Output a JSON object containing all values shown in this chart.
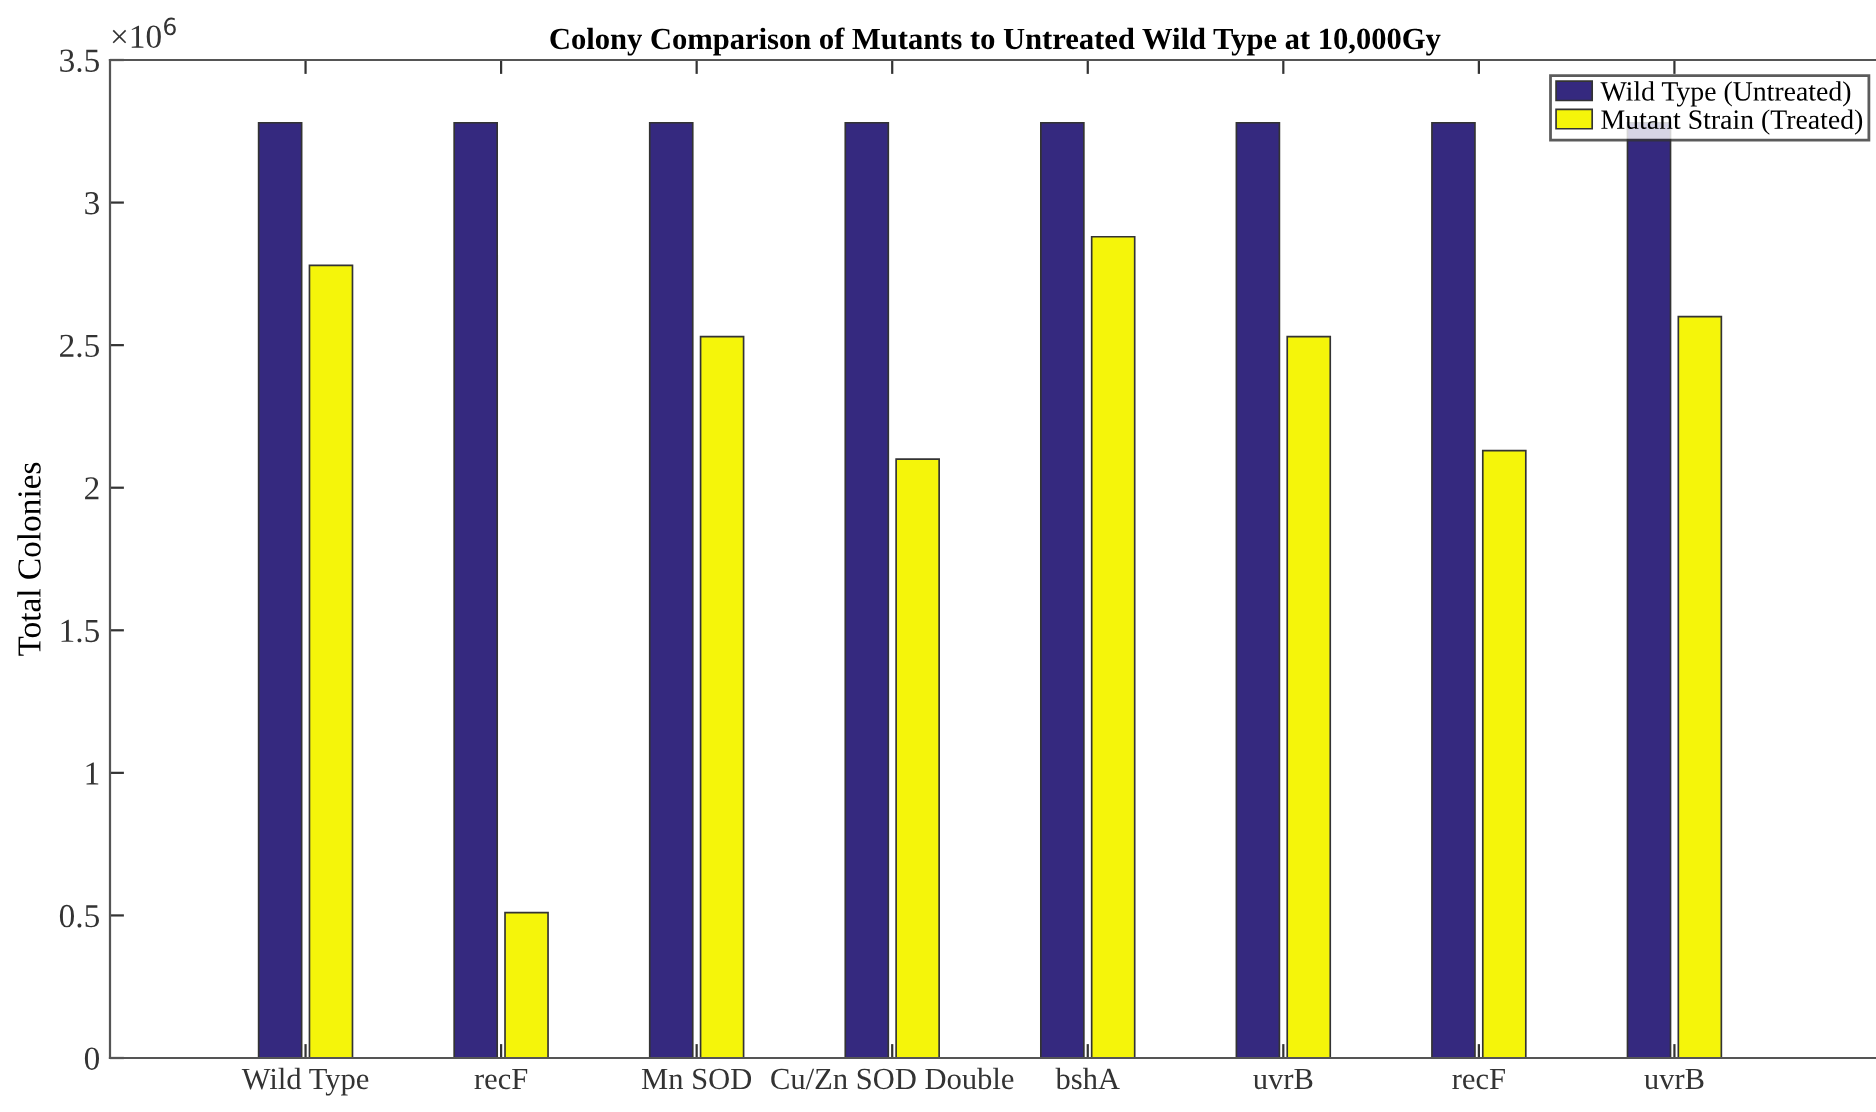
{
  "chart_data": {
    "type": "bar",
    "title": "Colony Comparison of Mutants to Untreated Wild Type at 10,000Gy",
    "ylabel": "Total Colonies",
    "categories": [
      "Wild Type",
      "recF",
      "Mn SOD",
      "Cu/Zn SOD Double",
      "bshA",
      "uvrB",
      "recF",
      "uvrB"
    ],
    "series": [
      {
        "name": "Wild Type (Untreated)",
        "color": "#35297f",
        "values": [
          3.28,
          3.28,
          3.28,
          3.28,
          3.28,
          3.28,
          3.28,
          3.28
        ]
      },
      {
        "name": "Mutant Strain (Treated)",
        "color": "#f5f50a",
        "values": [
          2.78,
          0.51,
          2.53,
          2.1,
          2.88,
          2.53,
          2.13,
          2.6
        ]
      }
    ],
    "ylim": [
      0,
      3.5
    ],
    "yticks": [
      0,
      0.5,
      1,
      1.5,
      2,
      2.5,
      3,
      3.5
    ],
    "annotations": [
      "×10$^{6}$"
    ],
    "grid": false,
    "legend": "top right"
  }
}
